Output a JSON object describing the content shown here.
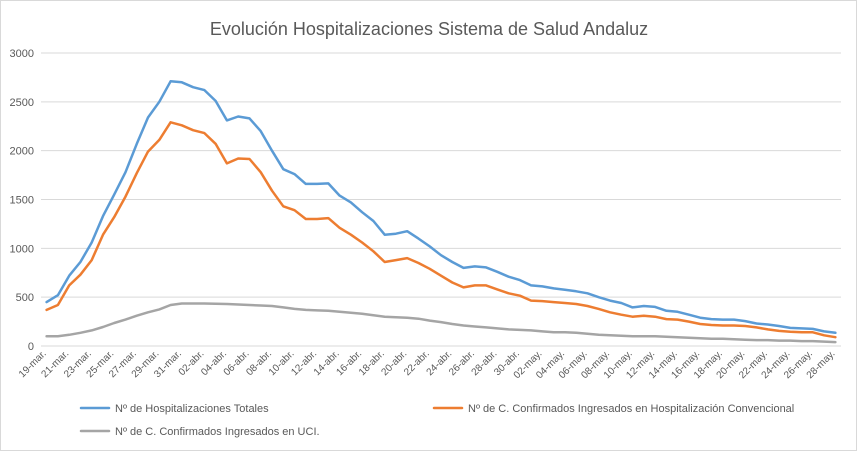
{
  "chart_data": {
    "type": "line",
    "title": "Evolución Hospitalizaciones Sistema de Salud Andaluz",
    "xlabel": "",
    "ylabel": "",
    "ylim": [
      0,
      3000
    ],
    "yticks": [
      0,
      500,
      1000,
      1500,
      2000,
      2500,
      3000
    ],
    "grid": true,
    "legend_position": "bottom",
    "x": [
      "19-mar.",
      "20-mar.",
      "21-mar.",
      "22-mar.",
      "23-mar.",
      "24-mar.",
      "25-mar.",
      "26-mar.",
      "27-mar.",
      "28-mar.",
      "29-mar.",
      "30-mar.",
      "31-mar.",
      "01-abr.",
      "02-abr.",
      "03-abr.",
      "04-abr.",
      "05-abr.",
      "06-abr.",
      "07-abr.",
      "08-abr.",
      "09-abr.",
      "10-abr.",
      "11-abr.",
      "12-abr.",
      "13-abr.",
      "14-abr.",
      "15-abr.",
      "16-abr.",
      "17-abr.",
      "18-abr.",
      "19-abr.",
      "20-abr.",
      "21-abr.",
      "22-abr.",
      "23-abr.",
      "24-abr.",
      "25-abr.",
      "26-abr.",
      "27-abr.",
      "28-abr.",
      "29-abr.",
      "30-abr.",
      "01-may.",
      "02-may.",
      "03-may.",
      "04-may.",
      "05-may.",
      "06-may.",
      "07-may.",
      "08-may.",
      "09-may.",
      "10-may.",
      "11-may.",
      "12-may.",
      "13-may.",
      "14-may.",
      "15-may.",
      "16-may.",
      "17-may.",
      "18-may.",
      "19-may.",
      "20-may.",
      "21-may.",
      "22-may.",
      "23-may.",
      "24-may.",
      "25-may.",
      "26-may.",
      "27-may.",
      "28-may."
    ],
    "x_tick_labels": [
      "19-mar.",
      "21-mar.",
      "23-mar.",
      "25-mar.",
      "27-mar.",
      "29-mar.",
      "31-mar.",
      "02-abr.",
      "04-abr.",
      "06-abr.",
      "08-abr.",
      "10-abr.",
      "12-abr.",
      "14-abr.",
      "16-abr.",
      "18-abr.",
      "20-abr.",
      "22-abr.",
      "24-abr.",
      "26-abr.",
      "28-abr.",
      "30-abr.",
      "02-may.",
      "04-may.",
      "06-may.",
      "08-may.",
      "10-may.",
      "12-may.",
      "14-may.",
      "16-may.",
      "18-may.",
      "20-may.",
      "22-may.",
      "24-may.",
      "26-may.",
      "28-may."
    ],
    "series": [
      {
        "name": "Nº de Hospitalizaciones Totales",
        "color": "#5b9bd5",
        "values": [
          450,
          520,
          720,
          860,
          1060,
          1330,
          1550,
          1780,
          2070,
          2340,
          2500,
          2710,
          2700,
          2650,
          2620,
          2510,
          2310,
          2350,
          2330,
          2200,
          2000,
          1810,
          1760,
          1660,
          1660,
          1665,
          1540,
          1470,
          1370,
          1280,
          1140,
          1150,
          1175,
          1100,
          1020,
          930,
          860,
          800,
          815,
          805,
          760,
          710,
          675,
          620,
          610,
          590,
          575,
          560,
          540,
          500,
          465,
          440,
          395,
          410,
          400,
          360,
          350,
          320,
          290,
          275,
          270,
          270,
          255,
          230,
          220,
          205,
          185,
          180,
          175,
          150,
          135
        ]
      },
      {
        "name": "Nº de C. Confirmados Ingresados en Hospitalización Convencional",
        "color": "#ed7d31",
        "values": [
          370,
          420,
          620,
          730,
          880,
          1140,
          1320,
          1530,
          1770,
          1990,
          2110,
          2290,
          2260,
          2210,
          2180,
          2070,
          1870,
          1920,
          1915,
          1780,
          1590,
          1430,
          1390,
          1300,
          1300,
          1310,
          1210,
          1140,
          1060,
          970,
          860,
          880,
          900,
          850,
          790,
          720,
          650,
          600,
          620,
          620,
          580,
          540,
          515,
          465,
          460,
          450,
          440,
          430,
          410,
          380,
          345,
          320,
          300,
          310,
          300,
          275,
          270,
          250,
          225,
          215,
          210,
          210,
          205,
          190,
          170,
          155,
          145,
          140,
          140,
          110,
          90
        ]
      },
      {
        "name": "Nº de C. Confirmados Ingresados en UCI.",
        "color": "#a5a5a5",
        "values": [
          100,
          100,
          115,
          135,
          160,
          195,
          235,
          270,
          310,
          345,
          375,
          420,
          435,
          435,
          435,
          432,
          430,
          425,
          420,
          415,
          410,
          395,
          380,
          370,
          365,
          360,
          350,
          340,
          330,
          315,
          300,
          295,
          290,
          280,
          260,
          245,
          225,
          210,
          200,
          190,
          180,
          170,
          165,
          160,
          150,
          140,
          140,
          135,
          125,
          115,
          110,
          105,
          100,
          100,
          100,
          95,
          90,
          85,
          80,
          75,
          75,
          70,
          65,
          60,
          60,
          55,
          55,
          50,
          50,
          45,
          40
        ]
      }
    ]
  }
}
